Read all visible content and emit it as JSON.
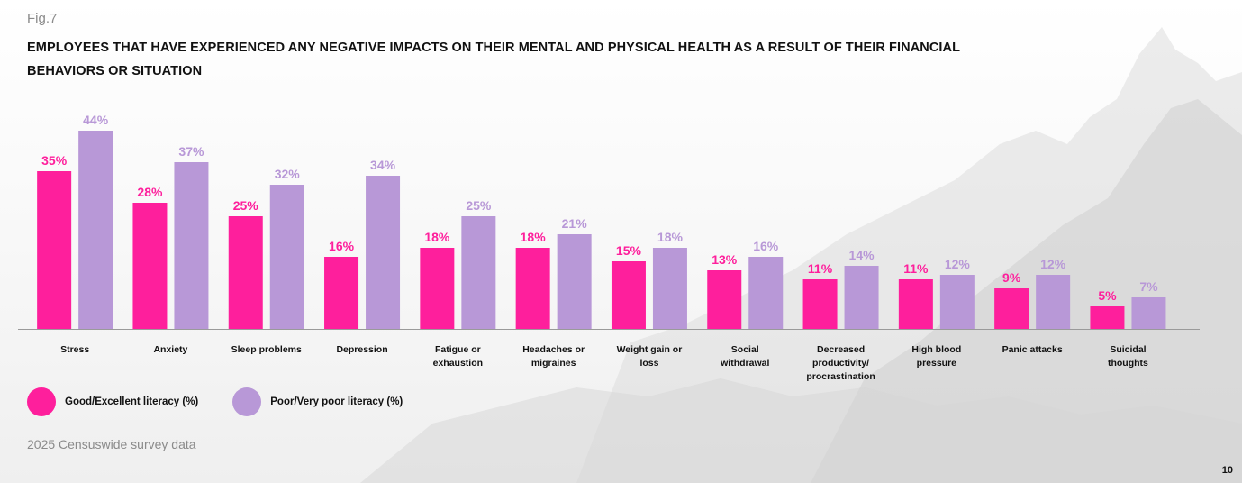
{
  "figure_label": "Fig.7",
  "title_line1": "EMPLOYEES THAT HAVE EXPERIENCED ANY NEGATIVE IMPACTS ON THEIR MENTAL AND PHYSICAL HEALTH AS A RESULT OF THEIR FINANCIAL",
  "title_line2": "BEHAVIORS OR SITUATION",
  "source": "2025 Censuswide survey data",
  "page_number": "10",
  "colors": {
    "good": "#fe1f9c",
    "poor": "#b898d7",
    "text": "#111111",
    "muted": "#8a8a8a"
  },
  "legend": [
    {
      "label": "Good/Excellent literacy (%)",
      "color": "#fe1f9c"
    },
    {
      "label": "Poor/Very poor literacy (%)",
      "color": "#b898d7"
    }
  ],
  "chart_data": {
    "type": "bar",
    "title": "EMPLOYEES THAT HAVE EXPERIENCED ANY NEGATIVE IMPACTS ON THEIR MENTAL AND PHYSICAL HEALTH AS A RESULT OF THEIR FINANCIAL BEHAVIORS OR SITUATION",
    "categories": [
      [
        "Stress"
      ],
      [
        "Anxiety"
      ],
      [
        "Sleep problems"
      ],
      [
        "Depression"
      ],
      [
        "Fatigue or",
        "exhaustion"
      ],
      [
        "Headaches or",
        "migraines"
      ],
      [
        "Weight gain or",
        "loss"
      ],
      [
        "Social",
        "withdrawal"
      ],
      [
        "Decreased",
        "productivity/",
        "procrastination"
      ],
      [
        "High blood",
        "pressure"
      ],
      [
        "Panic attacks"
      ],
      [
        "Suicidal",
        "thoughts"
      ]
    ],
    "series": [
      {
        "name": "Good/Excellent literacy (%)",
        "values": [
          35,
          28,
          25,
          16,
          18,
          18,
          15,
          13,
          11,
          11,
          9,
          5
        ]
      },
      {
        "name": "Poor/Very poor literacy (%)",
        "values": [
          44,
          37,
          32,
          34,
          25,
          21,
          18,
          16,
          14,
          12,
          12,
          7
        ]
      }
    ],
    "value_suffix": "%",
    "ylim": [
      0,
      44
    ],
    "grid": false,
    "legend_position": "bottom-left"
  }
}
